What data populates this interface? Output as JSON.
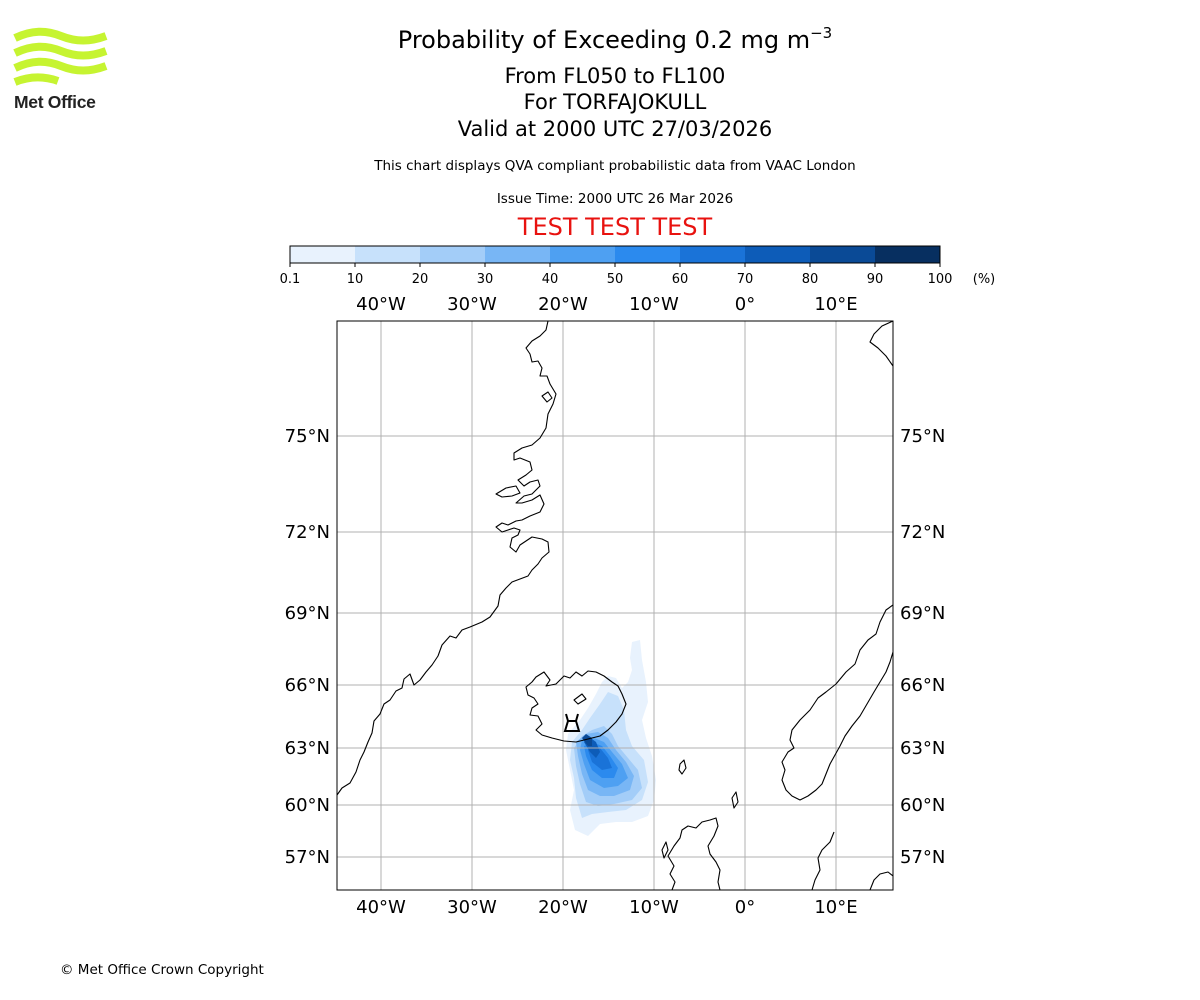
{
  "header": {
    "title_main": "Probability of Exceeding 0.2 mg m",
    "title_sup": "−3",
    "flight_levels": "From FL050 to FL100",
    "volcano_line": "For TORFAJOKULL",
    "valid_time": "Valid at 2000 UTC 27/03/2026",
    "note": "This chart displays QVA compliant probabilistic data from VAAC London",
    "issue_time": "Issue Time: 2000 UTC 26 Mar 2026",
    "test_banner": "TEST TEST TEST"
  },
  "logo": {
    "text": "Met Office",
    "color": "#c6f431"
  },
  "footer": {
    "copyright": "© Met Office Crown Copyright"
  },
  "colorbar": {
    "ticks": [
      "0.1",
      "10",
      "20",
      "30",
      "40",
      "50",
      "60",
      "70",
      "80",
      "90",
      "100"
    ],
    "unit": "(%)",
    "colors": [
      "#e8f2fd",
      "#c7e1fb",
      "#a3cdf8",
      "#78b6f5",
      "#4ea0f2",
      "#2b8aee",
      "#1a73d8",
      "#0d5cb8",
      "#0a4a96",
      "#072f60"
    ]
  },
  "map": {
    "volcano_marker": "volcano-icon",
    "lon_labels": [
      {
        "lon": -40,
        "label": "40°W"
      },
      {
        "lon": -30,
        "label": "30°W"
      },
      {
        "lon": -20,
        "label": "20°W"
      },
      {
        "lon": -10,
        "label": "10°W"
      },
      {
        "lon": 0,
        "label": "0°"
      },
      {
        "lon": 10,
        "label": "10°E"
      }
    ],
    "lat_labels": [
      {
        "lat": 75,
        "label": "75°N"
      },
      {
        "lat": 72,
        "label": "72°N"
      },
      {
        "lat": 69,
        "label": "69°N"
      },
      {
        "lat": 66,
        "label": "66°N"
      },
      {
        "lat": 63,
        "label": "63°N"
      },
      {
        "lat": 60,
        "label": "60°N"
      },
      {
        "lat": 57,
        "label": "57°N"
      }
    ]
  }
}
